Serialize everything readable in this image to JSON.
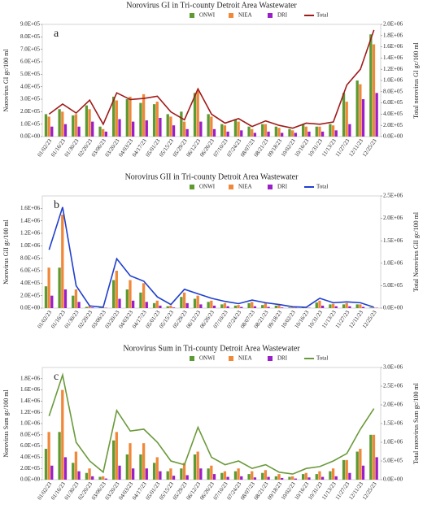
{
  "chart_data": [
    {
      "type": "bar",
      "title": "Norovirus GI in Tri-county Detroit Area Wastewater",
      "panel": "a",
      "y_label": "Norovirus GI  gc/100 ml",
      "y2_label": "Total norovirus GI  gc/100 ml",
      "categories": [
        "01/02/23",
        "01/16/23",
        "01/30/23",
        "02/20/23",
        "03/06/23",
        "03/20/23",
        "04/03/23",
        "04/17/23",
        "05/01/23",
        "05/15/23",
        "05/29/23",
        "06/12/23",
        "06/26/23",
        "07/10/23",
        "07/24/23",
        "08/07/23",
        "08/21/23",
        "09/18/23",
        "10/02/23",
        "10/16/23",
        "10/31/23",
        "11/13/23",
        "11/27/23",
        "12/11/23",
        "12/25/23"
      ],
      "series": [
        {
          "name": "ONWI",
          "color": "#5e9a32",
          "values": [
            180000,
            220000,
            170000,
            250000,
            80000,
            320000,
            300000,
            270000,
            260000,
            180000,
            200000,
            350000,
            180000,
            100000,
            140000,
            80000,
            100000,
            80000,
            60000,
            100000,
            80000,
            100000,
            350000,
            450000,
            820000
          ]
        },
        {
          "name": "NIEA",
          "color": "#f0883a",
          "values": [
            160000,
            200000,
            180000,
            220000,
            60000,
            290000,
            320000,
            340000,
            280000,
            160000,
            120000,
            370000,
            160000,
            90000,
            120000,
            60000,
            100000,
            70000,
            50000,
            80000,
            80000,
            90000,
            280000,
            420000,
            740000
          ]
        },
        {
          "name": "DRI",
          "color": "#9a1fc8",
          "values": [
            80000,
            100000,
            80000,
            120000,
            40000,
            140000,
            120000,
            130000,
            150000,
            90000,
            60000,
            120000,
            60000,
            40000,
            50000,
            30000,
            40000,
            30000,
            30000,
            40000,
            40000,
            50000,
            100000,
            300000,
            350000
          ]
        },
        {
          "name": "Total",
          "color": "#a01a1a",
          "axis": "y2",
          "values": [
            400000,
            580000,
            420000,
            650000,
            220000,
            780000,
            660000,
            680000,
            720000,
            440000,
            300000,
            850000,
            400000,
            240000,
            320000,
            180000,
            280000,
            200000,
            150000,
            240000,
            220000,
            260000,
            920000,
            1200000,
            1900000
          ]
        }
      ],
      "ylim": [
        0,
        900000
      ],
      "yticks": [
        {
          "value": 0,
          "label": "0.0E+00"
        },
        {
          "value": 100000,
          "label": "1.0E+05"
        },
        {
          "value": 200000,
          "label": "2.0E+05"
        },
        {
          "value": 300000,
          "label": "3.0E+05"
        },
        {
          "value": 400000,
          "label": "4.0E+05"
        },
        {
          "value": 500000,
          "label": "5.0E+05"
        },
        {
          "value": 600000,
          "label": "6.0E+05"
        },
        {
          "value": 700000,
          "label": "7.0E+05"
        },
        {
          "value": 800000,
          "label": "8.0E+05"
        },
        {
          "value": 900000,
          "label": "9.0E+05"
        }
      ],
      "y2lim": [
        0,
        2000000
      ],
      "y2ticks": [
        {
          "value": 0,
          "label": "0.0E+00"
        },
        {
          "value": 200000,
          "label": "2.0E+05"
        },
        {
          "value": 400000,
          "label": "4.0E+05"
        },
        {
          "value": 600000,
          "label": "6.0E+05"
        },
        {
          "value": 800000,
          "label": "8.0E+05"
        },
        {
          "value": 1000000,
          "label": "1.0E+06"
        },
        {
          "value": 1200000,
          "label": "1.2E+06"
        },
        {
          "value": 1400000,
          "label": "1.4E+06"
        },
        {
          "value": 1600000,
          "label": "1.6E+06"
        },
        {
          "value": 1800000,
          "label": "1.8E+06"
        },
        {
          "value": 2000000,
          "label": "2.0E+06"
        }
      ]
    },
    {
      "type": "bar",
      "title": "Norovirus GII in Tri-county Detroit Area Wastewater",
      "panel": "b",
      "y_label": "Norovirus GII gc/100 ml",
      "y2_label": "Total Norovirus GII gc/100 ml",
      "categories": [
        "01/02/23",
        "01/16/23",
        "01/30/23",
        "02/20/23",
        "03/06/23",
        "03/20/23",
        "04/03/23",
        "04/17/23",
        "05/01/23",
        "05/15/23",
        "05/29/23",
        "06/12/23",
        "06/26/23",
        "07/10/23",
        "07/24/23",
        "08/07/23",
        "08/21/23",
        "09/18/23",
        "10/02/23",
        "10/16/23",
        "10/31/23",
        "11/13/23",
        "11/27/23",
        "12/11/23",
        "12/25/23"
      ],
      "series": [
        {
          "name": "ONWI",
          "color": "#5e9a32",
          "values": [
            350000,
            650000,
            200000,
            20000,
            10000,
            450000,
            300000,
            250000,
            80000,
            30000,
            180000,
            150000,
            100000,
            60000,
            40000,
            80000,
            50000,
            40000,
            10000,
            10000,
            90000,
            60000,
            60000,
            60000,
            10000
          ]
        },
        {
          "name": "NIEA",
          "color": "#f0883a",
          "values": [
            650000,
            1500000,
            300000,
            30000,
            10000,
            600000,
            450000,
            400000,
            120000,
            40000,
            250000,
            200000,
            120000,
            80000,
            50000,
            100000,
            80000,
            50000,
            20000,
            10000,
            120000,
            70000,
            80000,
            60000,
            10000
          ]
        },
        {
          "name": "DRI",
          "color": "#9a1fc8",
          "values": [
            200000,
            300000,
            100000,
            10000,
            5000,
            150000,
            120000,
            100000,
            40000,
            10000,
            80000,
            60000,
            40000,
            30000,
            20000,
            30000,
            20000,
            10000,
            5000,
            5000,
            40000,
            30000,
            30000,
            20000,
            5000
          ]
        },
        {
          "name": "Total",
          "color": "#1f3fd0",
          "axis": "y2",
          "values": [
            1300000,
            2250000,
            500000,
            50000,
            20000,
            1100000,
            720000,
            600000,
            250000,
            80000,
            420000,
            320000,
            220000,
            150000,
            100000,
            180000,
            120000,
            80000,
            30000,
            20000,
            220000,
            120000,
            140000,
            120000,
            20000
          ]
        }
      ],
      "ylim": [
        0,
        1800000
      ],
      "yticks": [
        {
          "value": 0,
          "label": "0.0E+00"
        },
        {
          "value": 200000,
          "label": "2.0E+05"
        },
        {
          "value": 400000,
          "label": "4.0E+05"
        },
        {
          "value": 600000,
          "label": "6.0E+05"
        },
        {
          "value": 800000,
          "label": "8.0E+05"
        },
        {
          "value": 1000000,
          "label": "1.0E+06"
        },
        {
          "value": 1200000,
          "label": "1.2E+06"
        },
        {
          "value": 1400000,
          "label": "1.4E+06"
        },
        {
          "value": 1600000,
          "label": "1.6E+06"
        }
      ],
      "y2lim": [
        0,
        2500000
      ],
      "y2ticks": [
        {
          "value": 0,
          "label": "0.0E+00"
        },
        {
          "value": 500000,
          "label": "5.0E+05"
        },
        {
          "value": 1000000,
          "label": "1.0E+06"
        },
        {
          "value": 1500000,
          "label": "1.5E+06"
        },
        {
          "value": 2000000,
          "label": "2.0E+06"
        },
        {
          "value": 2500000,
          "label": "2.5E+06"
        }
      ]
    },
    {
      "type": "bar",
      "title": "Norovirus Sum in Tri-county Detroit Area Wastewater",
      "panel": "c",
      "y_label": "Norovirus Sum  gc/100 ml",
      "y2_label": "Total norovirus Sum  gc/100 ml",
      "categories": [
        "01/02/23",
        "01/16/23",
        "01/30/23",
        "02/20/23",
        "03/06/23",
        "03/20/23",
        "04/03/23",
        "04/17/23",
        "05/01/23",
        "05/15/23",
        "05/29/23",
        "06/12/23",
        "06/26/23",
        "07/10/23",
        "07/24/23",
        "08/07/23",
        "08/21/23",
        "09/18/23",
        "10/02/23",
        "10/16/23",
        "10/31/23",
        "11/13/23",
        "11/27/23",
        "12/11/23",
        "12/25/23"
      ],
      "series": [
        {
          "name": "ONWI",
          "color": "#5e9a32",
          "values": [
            550000,
            850000,
            300000,
            120000,
            50000,
            700000,
            450000,
            450000,
            300000,
            150000,
            200000,
            450000,
            200000,
            120000,
            150000,
            100000,
            120000,
            60000,
            50000,
            100000,
            100000,
            150000,
            350000,
            500000,
            800000
          ]
        },
        {
          "name": "NIEA",
          "color": "#f0883a",
          "values": [
            850000,
            1600000,
            500000,
            200000,
            60000,
            850000,
            650000,
            650000,
            400000,
            200000,
            300000,
            500000,
            250000,
            150000,
            200000,
            150000,
            170000,
            100000,
            60000,
            120000,
            150000,
            200000,
            350000,
            550000,
            800000
          ]
        },
        {
          "name": "DRI",
          "color": "#9a1fc8",
          "values": [
            250000,
            400000,
            150000,
            60000,
            20000,
            250000,
            200000,
            200000,
            150000,
            70000,
            80000,
            200000,
            100000,
            50000,
            60000,
            40000,
            50000,
            30000,
            20000,
            40000,
            50000,
            60000,
            120000,
            250000,
            400000
          ]
        },
        {
          "name": "Total",
          "color": "#6a9a3a",
          "axis": "y2",
          "values": [
            1700000,
            2800000,
            1000000,
            500000,
            200000,
            1850000,
            1300000,
            1350000,
            1000000,
            500000,
            400000,
            1400000,
            600000,
            400000,
            500000,
            300000,
            400000,
            200000,
            150000,
            300000,
            350000,
            500000,
            700000,
            1350000,
            1900000
          ]
        }
      ],
      "ylim": [
        0,
        2000000
      ],
      "yticks": [
        {
          "value": 0,
          "label": "0.0E+00"
        },
        {
          "value": 200000,
          "label": "2.0E+05"
        },
        {
          "value": 400000,
          "label": "4.0E+05"
        },
        {
          "value": 600000,
          "label": "6.0E+05"
        },
        {
          "value": 800000,
          "label": "8.0E+05"
        },
        {
          "value": 1000000,
          "label": "1.0E+06"
        },
        {
          "value": 1200000,
          "label": "1.2E+06"
        },
        {
          "value": 1400000,
          "label": "1.4E+06"
        },
        {
          "value": 1600000,
          "label": "1.6E+06"
        },
        {
          "value": 1800000,
          "label": "1.8E+06"
        }
      ],
      "y2lim": [
        0,
        3000000
      ],
      "y2ticks": [
        {
          "value": 0,
          "label": "0.0E+00"
        },
        {
          "value": 500000,
          "label": "5.0E+05"
        },
        {
          "value": 1000000,
          "label": "1.0E+06"
        },
        {
          "value": 1500000,
          "label": "1.5E+06"
        },
        {
          "value": 2000000,
          "label": "2.0E+06"
        },
        {
          "value": 2500000,
          "label": "2.5E+06"
        },
        {
          "value": 3000000,
          "label": "3.0E+06"
        }
      ]
    }
  ]
}
